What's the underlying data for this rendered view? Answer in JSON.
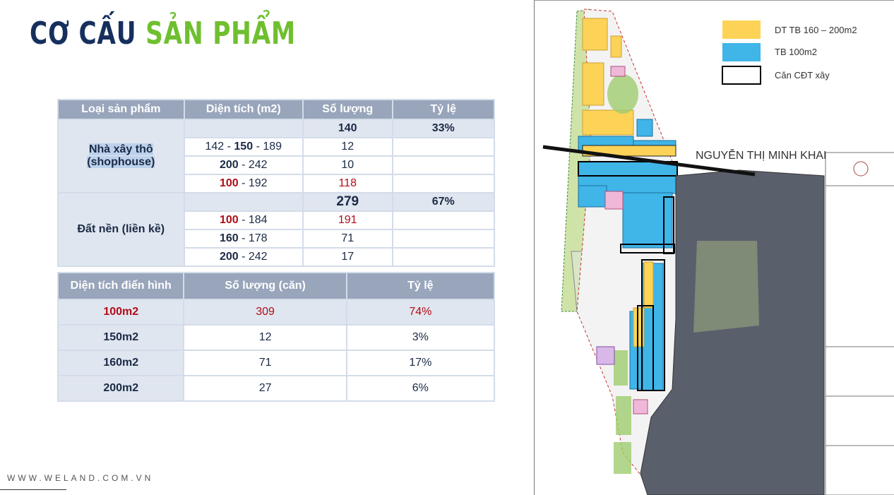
{
  "title": {
    "part1": "CƠ CẤU",
    "part2": "SẢN PHẨM"
  },
  "colors": {
    "navy": "#16305e",
    "green": "#6fbf2f",
    "header": "#98a5bb",
    "band": "#e0e6f0",
    "red": "#b00d18",
    "yellow": "#fdd357",
    "blue": "#3fb5e8"
  },
  "table1": {
    "headers": [
      "Loại sản phẩm",
      "Diện tích (m2)",
      "Số lượng",
      "Tỷ lệ"
    ],
    "group1": {
      "label_line1": "Nhà xây thô",
      "label_line2": "(shophouse)",
      "total": "140",
      "ratio": "33%",
      "rows": [
        {
          "a": "142 -",
          "b": "150",
          "c": "- 189",
          "qty": "12"
        },
        {
          "a": "200",
          "b": "- 242",
          "qty": "10"
        },
        {
          "a": "100",
          "b": "- 192",
          "qty": "118"
        }
      ]
    },
    "group2": {
      "label": "Đất nền (liền kề)",
      "total": "279",
      "ratio": "67%",
      "rows": [
        {
          "a": "100",
          "b": "- 184",
          "qty": "191"
        },
        {
          "a": "160",
          "b": "- 178",
          "qty": "71"
        },
        {
          "a": "200",
          "b": "- 242",
          "qty": "17"
        }
      ]
    }
  },
  "table2": {
    "headers": [
      "Diện tích điển hình",
      "Số lượng (căn)",
      "Tỷ lệ"
    ],
    "rows": [
      {
        "area": "100m2",
        "qty": "309",
        "ratio": "74%"
      },
      {
        "area": "150m2",
        "qty": "12",
        "ratio": "3%"
      },
      {
        "area": "160m2",
        "qty": "71",
        "ratio": "17%"
      },
      {
        "area": "200m2",
        "qty": "27",
        "ratio": "6%"
      }
    ]
  },
  "footer": "WWW.WELAND.COM.VN",
  "map": {
    "legend": [
      {
        "label": "DT TB 160 – 200m2",
        "icon": "yellow-swatch"
      },
      {
        "label": "TB 100m2",
        "icon": "blue-swatch"
      },
      {
        "label": "Căn CĐT xây",
        "icon": "outlined-box"
      }
    ],
    "road_label": "NGUYỄN THỊ MINH KHAI"
  }
}
